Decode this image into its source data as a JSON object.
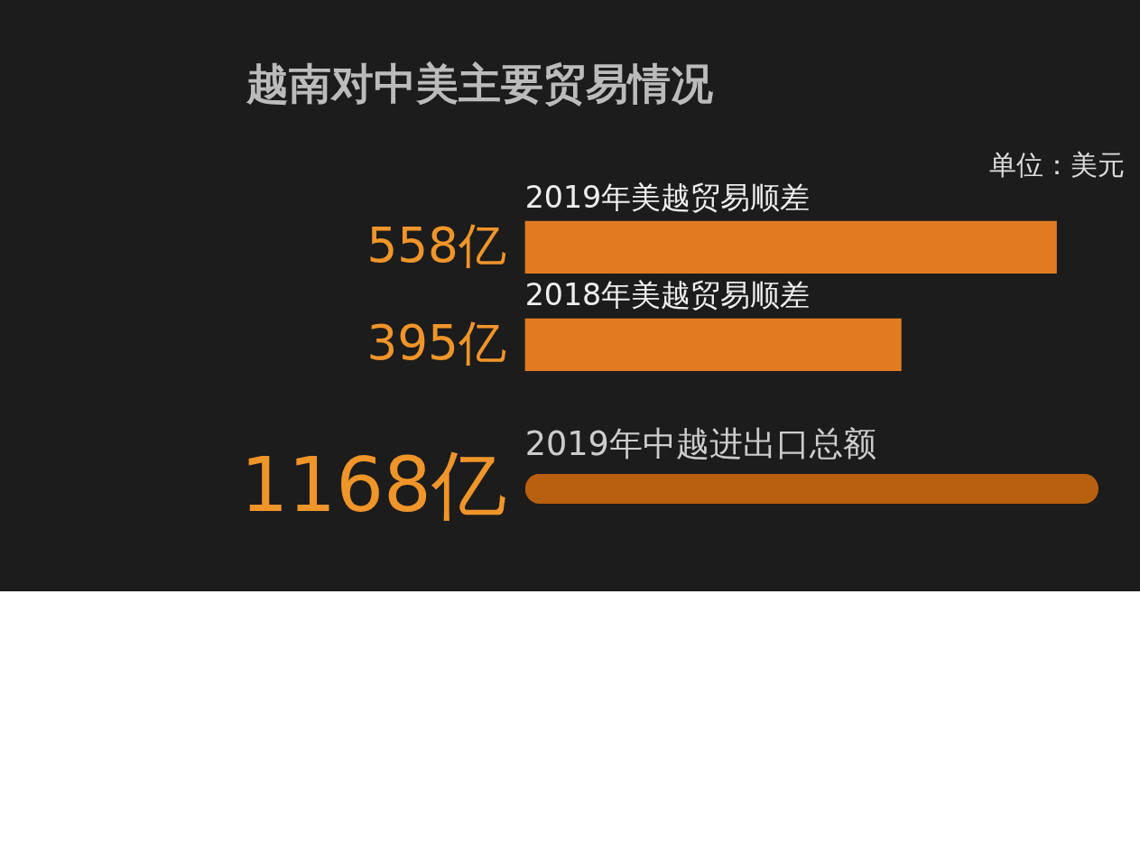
{
  "chart_data": [
    {
      "type": "bar",
      "orientation": "horizontal",
      "title": "越南对中美主要贸易情况",
      "annotations": [
        "单位：美元"
      ],
      "categories": [
        "2019年美越贸易顺差",
        "2018年美越贸易顺差"
      ],
      "values": [
        558,
        395
      ],
      "value_labels": [
        "558亿",
        "395亿"
      ],
      "color": "#e07b22"
    },
    {
      "type": "bar",
      "orientation": "horizontal",
      "categories": [
        "2019年中越进出口总额"
      ],
      "values": [
        1168
      ],
      "value_labels": [
        "1168亿"
      ],
      "color": "#b8600f"
    }
  ]
}
